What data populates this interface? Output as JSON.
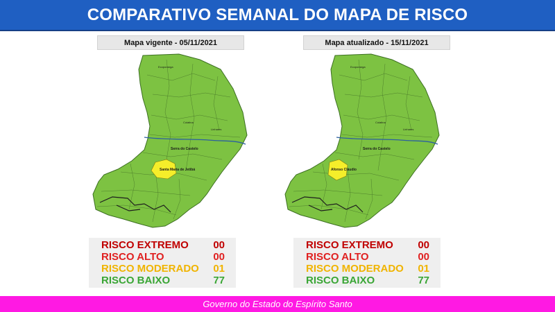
{
  "header": {
    "title": "COMPARATIVO SEMANAL DO MAPA DE RISCO"
  },
  "colors": {
    "header_bg": "#1f5fc2",
    "footer_bg": "#ff19e3",
    "risk_extremo": "#c00000",
    "risk_alto": "#e02020",
    "risk_moderado": "#f0b400",
    "risk_baixo": "#3aa635",
    "map_low_fill": "#7dc242",
    "map_moderate_fill": "#f5ee2a"
  },
  "panels": [
    {
      "caption": "Mapa vigente - 05/11/2021",
      "highlight_label": "Santa Maria de Jetibá",
      "map_labels": {
        "main_city": "Serra do Castelo",
        "north_city": "Ecoporanga",
        "east_city": "Linhares",
        "center_city": "Colatina"
      },
      "legend": [
        {
          "label": "RISCO EXTREMO",
          "count": "00"
        },
        {
          "label": "RISCO ALTO",
          "count": "00"
        },
        {
          "label": "RISCO MODERADO",
          "count": "01"
        },
        {
          "label": "RISCO BAIXO",
          "count": "77"
        }
      ]
    },
    {
      "caption": "Mapa atualizado - 15/11/2021",
      "highlight_label": "Afonso Cláudio",
      "map_labels": {
        "main_city": "Serra do Castelo",
        "north_city": "Ecoporanga",
        "east_city": "Linhares",
        "center_city": "Colatina"
      },
      "legend": [
        {
          "label": "RISCO EXTREMO",
          "count": "00"
        },
        {
          "label": "RISCO ALTO",
          "count": "00"
        },
        {
          "label": "RISCO MODERADO",
          "count": "01"
        },
        {
          "label": "RISCO BAIXO",
          "count": "77"
        }
      ]
    }
  ],
  "footer": {
    "text": "Governo do Estado do Espírito Santo"
  }
}
